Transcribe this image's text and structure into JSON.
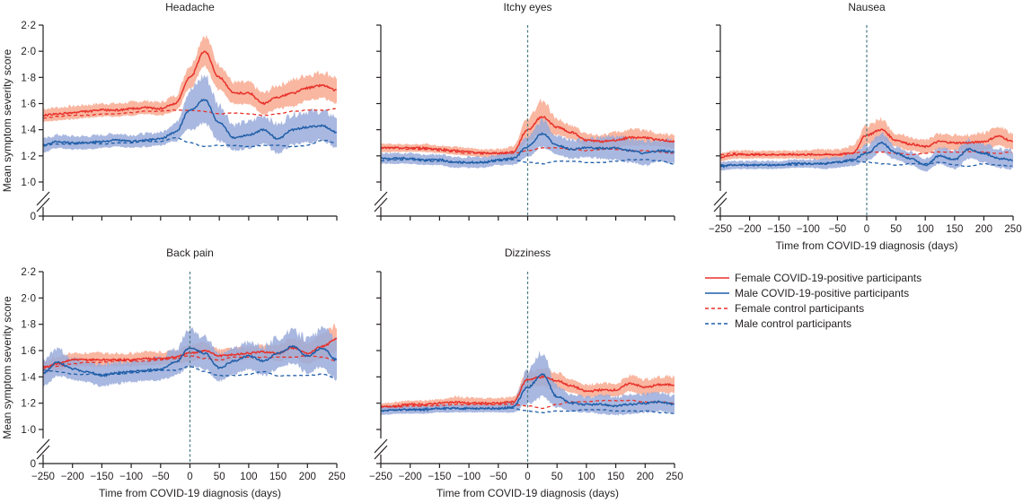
{
  "colors": {
    "female_line": "#e8312a",
    "female_band": "#f8a98f",
    "male_line": "#1f5ea8",
    "male_band": "#9aabdb",
    "zero_line": "#4a7a86",
    "axis": "#231f20"
  },
  "legend": {
    "items": [
      {
        "label": "Female COVID-19-positive participants",
        "series": "female_pos",
        "style": "solid"
      },
      {
        "label": "Male COVID-19-positive participants",
        "series": "male_pos",
        "style": "solid"
      },
      {
        "label": "Female control participants",
        "series": "female_ctl",
        "style": "dashed"
      },
      {
        "label": "Male control participants",
        "series": "male_ctl",
        "style": "dashed"
      }
    ]
  },
  "chart_data": [
    {
      "type": "line",
      "title": "Headache",
      "xlabel": "",
      "ylabel": "Mean symptom severity score",
      "xlim": [
        -250,
        250
      ],
      "ylim": [
        1.0,
        2.2
      ],
      "y_ticks": [
        "0",
        "1·0",
        "1·2",
        "1·4",
        "1·6",
        "1·8",
        "2·0",
        "2·2"
      ],
      "x_ticks": [],
      "zero_line": false,
      "x": [
        -250,
        -225,
        -200,
        -175,
        -150,
        -125,
        -100,
        -75,
        -50,
        -25,
        0,
        25,
        50,
        75,
        100,
        125,
        150,
        175,
        200,
        225,
        250
      ],
      "series": [
        {
          "name": "Female COVID-19-positive participants",
          "key": "female_pos",
          "values": [
            1.51,
            1.52,
            1.53,
            1.54,
            1.55,
            1.55,
            1.56,
            1.57,
            1.56,
            1.6,
            1.8,
            2.0,
            1.8,
            1.68,
            1.68,
            1.6,
            1.65,
            1.68,
            1.72,
            1.74,
            1.7
          ],
          "band_halfwidth": [
            0.05,
            0.05,
            0.05,
            0.05,
            0.05,
            0.05,
            0.05,
            0.05,
            0.05,
            0.06,
            0.09,
            0.12,
            0.1,
            0.08,
            0.08,
            0.08,
            0.09,
            0.1,
            0.1,
            0.1,
            0.1
          ]
        },
        {
          "name": "Male COVID-19-positive participants",
          "key": "male_pos",
          "values": [
            1.28,
            1.31,
            1.3,
            1.3,
            1.31,
            1.32,
            1.31,
            1.32,
            1.33,
            1.38,
            1.55,
            1.63,
            1.45,
            1.34,
            1.36,
            1.4,
            1.33,
            1.4,
            1.42,
            1.43,
            1.38
          ],
          "band_halfwidth": [
            0.05,
            0.05,
            0.05,
            0.05,
            0.05,
            0.05,
            0.05,
            0.05,
            0.05,
            0.07,
            0.15,
            0.18,
            0.14,
            0.1,
            0.1,
            0.11,
            0.11,
            0.12,
            0.12,
            0.11,
            0.12
          ]
        },
        {
          "name": "Female control participants",
          "key": "female_ctl",
          "values": [
            1.49,
            1.5,
            1.51,
            1.51,
            1.52,
            1.52,
            1.53,
            1.54,
            1.54,
            1.55,
            1.55,
            1.54,
            1.52,
            1.53,
            1.52,
            1.51,
            1.52,
            1.54,
            1.55,
            1.55,
            1.56
          ]
        },
        {
          "name": "Male control participants",
          "key": "male_ctl",
          "values": [
            1.28,
            1.29,
            1.29,
            1.3,
            1.29,
            1.3,
            1.3,
            1.31,
            1.31,
            1.34,
            1.3,
            1.27,
            1.28,
            1.28,
            1.27,
            1.28,
            1.28,
            1.27,
            1.28,
            1.32,
            1.3
          ]
        }
      ]
    },
    {
      "type": "line",
      "title": "Itchy eyes",
      "xlabel": "",
      "ylabel": "",
      "xlim": [
        -250,
        250
      ],
      "ylim": [
        1.0,
        2.2
      ],
      "y_ticks": [],
      "x_ticks": [],
      "zero_line": true,
      "x": [
        -250,
        -225,
        -200,
        -175,
        -150,
        -125,
        -100,
        -75,
        -50,
        -25,
        0,
        25,
        50,
        75,
        100,
        125,
        150,
        175,
        200,
        225,
        250
      ],
      "series": [
        {
          "name": "Female COVID-19-positive participants",
          "key": "female_pos",
          "values": [
            1.26,
            1.26,
            1.26,
            1.26,
            1.25,
            1.24,
            1.23,
            1.22,
            1.22,
            1.23,
            1.4,
            1.5,
            1.42,
            1.38,
            1.32,
            1.31,
            1.32,
            1.34,
            1.34,
            1.32,
            1.31
          ],
          "band_halfwidth": [
            0.03,
            0.03,
            0.03,
            0.03,
            0.03,
            0.03,
            0.03,
            0.03,
            0.03,
            0.04,
            0.08,
            0.12,
            0.06,
            0.05,
            0.05,
            0.05,
            0.06,
            0.06,
            0.06,
            0.05,
            0.05
          ]
        },
        {
          "name": "Male COVID-19-positive participants",
          "key": "male_pos",
          "values": [
            1.18,
            1.18,
            1.18,
            1.17,
            1.17,
            1.15,
            1.15,
            1.15,
            1.17,
            1.18,
            1.27,
            1.37,
            1.28,
            1.25,
            1.26,
            1.26,
            1.26,
            1.24,
            1.22,
            1.24,
            1.23
          ],
          "band_halfwidth": [
            0.04,
            0.04,
            0.04,
            0.04,
            0.04,
            0.04,
            0.04,
            0.04,
            0.04,
            0.05,
            0.08,
            0.1,
            0.07,
            0.07,
            0.07,
            0.08,
            0.09,
            0.09,
            0.09,
            0.08,
            0.09
          ]
        },
        {
          "name": "Female control participants",
          "key": "female_ctl",
          "values": [
            1.26,
            1.26,
            1.25,
            1.25,
            1.24,
            1.23,
            1.22,
            1.22,
            1.22,
            1.22,
            1.24,
            1.26,
            1.26,
            1.25,
            1.24,
            1.25,
            1.25,
            1.24,
            1.24,
            1.23,
            1.22
          ]
        },
        {
          "name": "Male control participants",
          "key": "male_ctl",
          "values": [
            1.16,
            1.17,
            1.17,
            1.16,
            1.16,
            1.15,
            1.15,
            1.15,
            1.16,
            1.17,
            1.15,
            1.14,
            1.16,
            1.16,
            1.15,
            1.15,
            1.16,
            1.17,
            1.17,
            1.16,
            1.14
          ]
        }
      ]
    },
    {
      "type": "line",
      "title": "Nausea",
      "xlabel": "Time from COVID-19 diagnosis (days)",
      "ylabel": "",
      "xlim": [
        -250,
        250
      ],
      "ylim": [
        1.0,
        2.2
      ],
      "y_ticks": [],
      "x_ticks": [
        "−250",
        "−200",
        "−150",
        "−100",
        "−50",
        "0",
        "50",
        "100",
        "150",
        "200",
        "250"
      ],
      "zero_line": true,
      "x": [
        -250,
        -225,
        -200,
        -175,
        -150,
        -125,
        -100,
        -75,
        -50,
        -25,
        0,
        25,
        50,
        75,
        100,
        125,
        150,
        175,
        200,
        225,
        250
      ],
      "series": [
        {
          "name": "Female COVID-19-positive participants",
          "key": "female_pos",
          "values": [
            1.19,
            1.21,
            1.21,
            1.21,
            1.21,
            1.21,
            1.21,
            1.21,
            1.21,
            1.22,
            1.36,
            1.4,
            1.32,
            1.29,
            1.27,
            1.31,
            1.3,
            1.3,
            1.31,
            1.35,
            1.31
          ],
          "band_halfwidth": [
            0.03,
            0.03,
            0.03,
            0.03,
            0.03,
            0.03,
            0.03,
            0.04,
            0.04,
            0.05,
            0.07,
            0.08,
            0.05,
            0.05,
            0.05,
            0.06,
            0.06,
            0.06,
            0.07,
            0.07,
            0.06
          ]
        },
        {
          "name": "Male COVID-19-positive participants",
          "key": "male_pos",
          "values": [
            1.12,
            1.13,
            1.13,
            1.13,
            1.13,
            1.14,
            1.14,
            1.14,
            1.15,
            1.17,
            1.22,
            1.3,
            1.22,
            1.18,
            1.13,
            1.2,
            1.17,
            1.25,
            1.22,
            1.18,
            1.17
          ],
          "band_halfwidth": [
            0.03,
            0.03,
            0.03,
            0.03,
            0.03,
            0.03,
            0.03,
            0.04,
            0.04,
            0.05,
            0.06,
            0.07,
            0.05,
            0.05,
            0.05,
            0.06,
            0.07,
            0.07,
            0.07,
            0.07,
            0.07
          ]
        },
        {
          "name": "Female control participants",
          "key": "female_ctl",
          "values": [
            1.21,
            1.22,
            1.21,
            1.21,
            1.21,
            1.21,
            1.21,
            1.21,
            1.21,
            1.22,
            1.23,
            1.23,
            1.22,
            1.21,
            1.22,
            1.23,
            1.23,
            1.23,
            1.23,
            1.22,
            1.23
          ]
        },
        {
          "name": "Male control participants",
          "key": "male_ctl",
          "values": [
            1.13,
            1.13,
            1.13,
            1.13,
            1.13,
            1.13,
            1.14,
            1.14,
            1.15,
            1.16,
            1.15,
            1.14,
            1.13,
            1.14,
            1.14,
            1.15,
            1.13,
            1.12,
            1.14,
            1.13,
            1.12
          ]
        }
      ]
    },
    {
      "type": "line",
      "title": "Back pain",
      "xlabel": "Time from COVID-19 diagnosis (days)",
      "ylabel": "Mean symptom severity score",
      "xlim": [
        -250,
        250
      ],
      "ylim": [
        1.0,
        2.2
      ],
      "y_ticks": [
        "0",
        "1·0",
        "1·2",
        "1·4",
        "1·6",
        "1·8",
        "2·0",
        "2·2"
      ],
      "x_ticks": [
        "−250",
        "−200",
        "−150",
        "−100",
        "−50",
        "0",
        "50",
        "100",
        "150",
        "200",
        "250"
      ],
      "zero_line": true,
      "x": [
        -250,
        -225,
        -200,
        -175,
        -150,
        -125,
        -100,
        -75,
        -50,
        -25,
        0,
        25,
        50,
        75,
        100,
        125,
        150,
        175,
        200,
        225,
        250
      ],
      "series": [
        {
          "name": "Female COVID-19-positive participants",
          "key": "female_pos",
          "values": [
            1.47,
            1.5,
            1.53,
            1.53,
            1.53,
            1.53,
            1.53,
            1.54,
            1.54,
            1.55,
            1.58,
            1.6,
            1.56,
            1.57,
            1.58,
            1.59,
            1.58,
            1.62,
            1.58,
            1.63,
            1.69
          ],
          "band_halfwidth": [
            0.05,
            0.05,
            0.05,
            0.05,
            0.05,
            0.05,
            0.05,
            0.05,
            0.05,
            0.05,
            0.06,
            0.06,
            0.05,
            0.05,
            0.05,
            0.05,
            0.06,
            0.07,
            0.08,
            0.09,
            0.1
          ]
        },
        {
          "name": "Male COVID-19-positive participants",
          "key": "male_pos",
          "values": [
            1.43,
            1.51,
            1.46,
            1.44,
            1.41,
            1.43,
            1.44,
            1.45,
            1.46,
            1.51,
            1.62,
            1.58,
            1.47,
            1.52,
            1.56,
            1.52,
            1.58,
            1.63,
            1.56,
            1.62,
            1.53
          ],
          "band_halfwidth": [
            0.1,
            0.1,
            0.08,
            0.08,
            0.08,
            0.08,
            0.08,
            0.08,
            0.08,
            0.1,
            0.14,
            0.12,
            0.1,
            0.1,
            0.1,
            0.11,
            0.12,
            0.12,
            0.13,
            0.14,
            0.15
          ]
        },
        {
          "name": "Female control participants",
          "key": "female_ctl",
          "values": [
            1.48,
            1.48,
            1.5,
            1.51,
            1.51,
            1.52,
            1.52,
            1.52,
            1.53,
            1.54,
            1.56,
            1.54,
            1.53,
            1.55,
            1.55,
            1.55,
            1.55,
            1.55,
            1.56,
            1.55,
            1.52
          ]
        },
        {
          "name": "Male control participants",
          "key": "male_ctl",
          "values": [
            1.45,
            1.44,
            1.42,
            1.42,
            1.42,
            1.42,
            1.43,
            1.44,
            1.45,
            1.45,
            1.48,
            1.44,
            1.41,
            1.41,
            1.42,
            1.44,
            1.41,
            1.41,
            1.41,
            1.42,
            1.39
          ]
        }
      ]
    },
    {
      "type": "line",
      "title": "Dizziness",
      "xlabel": "Time from COVID-19 diagnosis (days)",
      "ylabel": "",
      "xlim": [
        -250,
        250
      ],
      "ylim": [
        1.0,
        2.2
      ],
      "y_ticks": [],
      "x_ticks": [
        "−250",
        "−200",
        "−150",
        "−100",
        "−50",
        "0",
        "50",
        "100",
        "150",
        "200",
        "250"
      ],
      "zero_line": true,
      "x": [
        -250,
        -225,
        -200,
        -175,
        -150,
        -125,
        -100,
        -75,
        -50,
        -25,
        0,
        25,
        50,
        75,
        100,
        125,
        150,
        175,
        200,
        225,
        250
      ],
      "series": [
        {
          "name": "Female COVID-19-positive participants",
          "key": "female_pos",
          "values": [
            1.17,
            1.18,
            1.19,
            1.19,
            1.2,
            1.21,
            1.2,
            1.2,
            1.2,
            1.21,
            1.38,
            1.4,
            1.37,
            1.33,
            1.29,
            1.3,
            1.3,
            1.35,
            1.32,
            1.34,
            1.34
          ],
          "band_halfwidth": [
            0.03,
            0.03,
            0.03,
            0.03,
            0.03,
            0.04,
            0.04,
            0.04,
            0.04,
            0.04,
            0.06,
            0.07,
            0.06,
            0.05,
            0.05,
            0.05,
            0.05,
            0.06,
            0.06,
            0.06,
            0.06
          ]
        },
        {
          "name": "Male COVID-19-positive participants",
          "key": "male_pos",
          "values": [
            1.14,
            1.15,
            1.15,
            1.15,
            1.16,
            1.16,
            1.16,
            1.16,
            1.16,
            1.17,
            1.32,
            1.42,
            1.25,
            1.2,
            1.19,
            1.19,
            1.18,
            1.19,
            1.2,
            1.21,
            1.19
          ],
          "band_halfwidth": [
            0.03,
            0.03,
            0.03,
            0.03,
            0.03,
            0.03,
            0.03,
            0.03,
            0.03,
            0.04,
            0.12,
            0.18,
            0.08,
            0.06,
            0.06,
            0.07,
            0.07,
            0.07,
            0.07,
            0.07,
            0.07
          ]
        },
        {
          "name": "Female control participants",
          "key": "female_ctl",
          "values": [
            1.17,
            1.17,
            1.18,
            1.18,
            1.18,
            1.19,
            1.19,
            1.19,
            1.19,
            1.19,
            1.18,
            1.16,
            1.19,
            1.21,
            1.21,
            1.22,
            1.22,
            1.22,
            1.21,
            1.21,
            1.2
          ]
        },
        {
          "name": "Male control participants",
          "key": "male_ctl",
          "values": [
            1.14,
            1.15,
            1.15,
            1.16,
            1.16,
            1.16,
            1.16,
            1.16,
            1.16,
            1.16,
            1.14,
            1.13,
            1.14,
            1.14,
            1.15,
            1.15,
            1.14,
            1.14,
            1.14,
            1.13,
            1.12
          ]
        }
      ]
    }
  ]
}
